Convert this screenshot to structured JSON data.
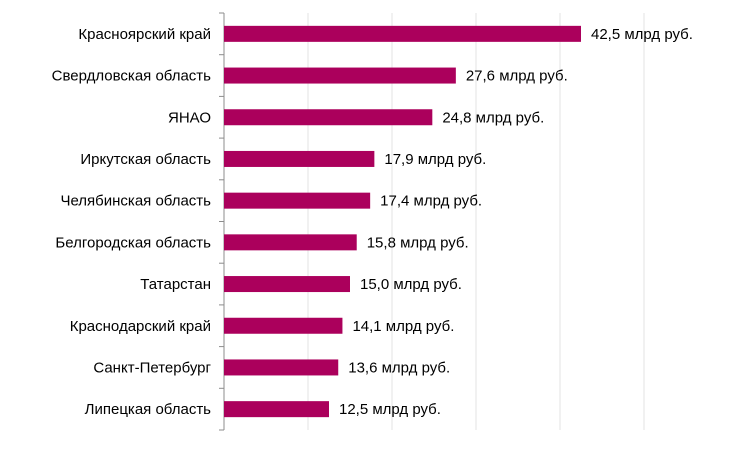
{
  "chart_data": {
    "type": "bar",
    "orientation": "horizontal",
    "categories": [
      "Красноярский край",
      "Свердловская область",
      "ЯНАО",
      "Иркутская область",
      "Челябинская область",
      "Белгородская область",
      "Татарстан",
      "Краснодарский край",
      "Санкт-Петербург",
      "Липецкая область"
    ],
    "values": [
      42.5,
      27.6,
      24.8,
      17.9,
      17.4,
      15.8,
      15.0,
      14.1,
      13.6,
      12.5
    ],
    "data_labels": [
      "42,5 млрд руб.",
      "27,6 млрд руб.",
      "24,8 млрд руб.",
      "17,9 млрд руб.",
      "17,4 млрд руб.",
      "15,8 млрд руб.",
      "15,0 млрд руб.",
      "14,1 млрд руб.",
      "13,6 млрд руб.",
      "12,5 млрд руб."
    ],
    "xlim": [
      0,
      50
    ],
    "grid": true,
    "bar_color": "#AB005C",
    "title": "",
    "xlabel": "",
    "ylabel": ""
  }
}
